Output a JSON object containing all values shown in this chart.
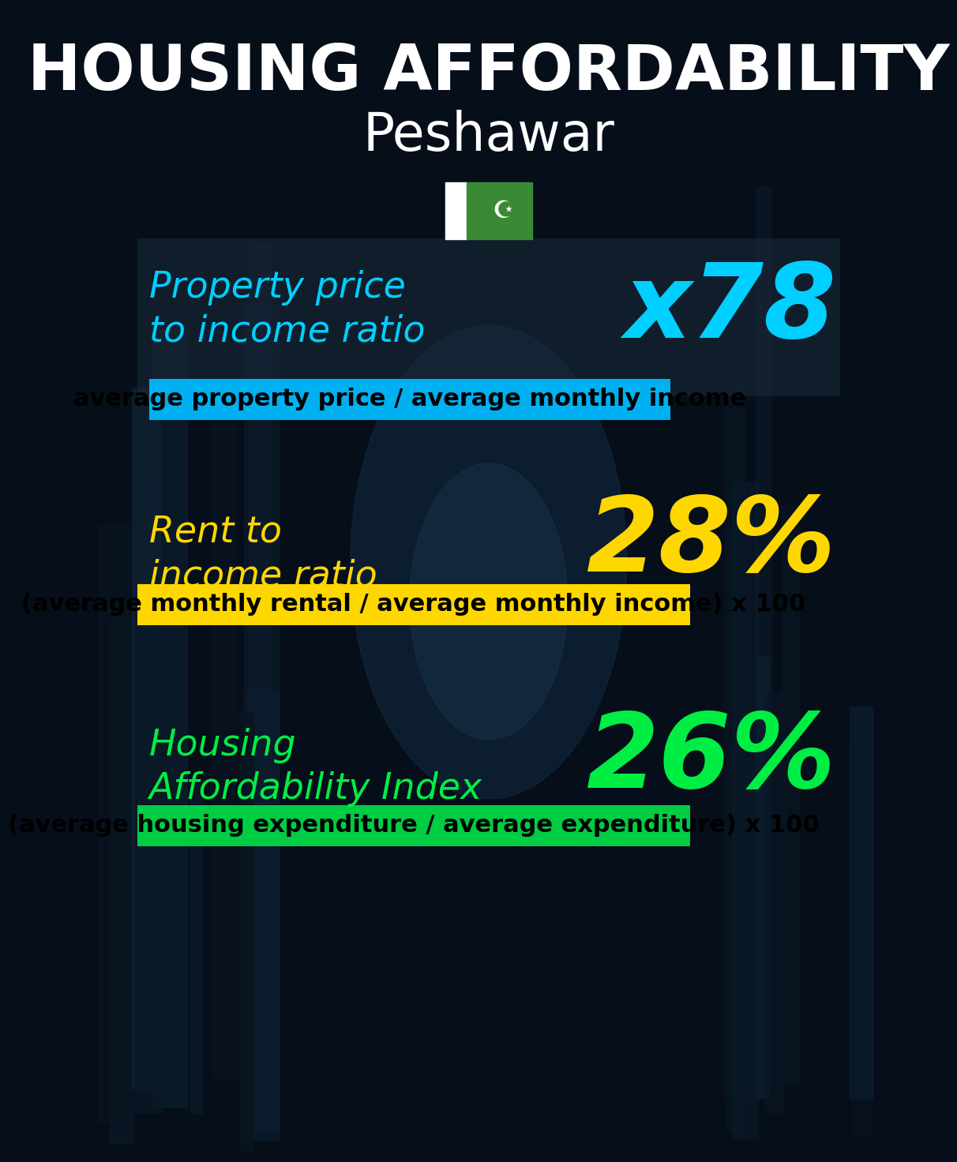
{
  "title_line1": "HOUSING AFFORDABILITY",
  "title_line2": "Peshawar",
  "title_color": "#ffffff",
  "title_fontsize": 58,
  "subtitle_fontsize": 48,
  "section1_label": "Property price\nto income ratio",
  "section1_value": "x78",
  "section1_label_color": "#00cfff",
  "section1_value_color": "#00cfff",
  "section1_label_fontsize": 33,
  "section1_value_fontsize": 95,
  "section1_banner_text": "average property price / average monthly income",
  "section1_banner_color": "#00b0f0",
  "section1_banner_text_color": "#000000",
  "section1_banner_fontsize": 22,
  "section2_label": "Rent to\nincome ratio",
  "section2_value": "28%",
  "section2_label_color": "#ffd700",
  "section2_value_color": "#ffd700",
  "section2_label_fontsize": 33,
  "section2_value_fontsize": 95,
  "section2_banner_text": "(average monthly rental / average monthly income) x 100",
  "section2_banner_color": "#ffd700",
  "section2_banner_text_color": "#000000",
  "section2_banner_fontsize": 22,
  "section3_label": "Housing\nAffordability Index",
  "section3_value": "26%",
  "section3_label_color": "#00ee44",
  "section3_value_color": "#00ee44",
  "section3_label_fontsize": 33,
  "section3_value_fontsize": 95,
  "section3_banner_text": "(average housing expenditure / average expenditure) x 100",
  "section3_banner_color": "#00cc44",
  "section3_banner_text_color": "#000000",
  "section3_banner_fontsize": 22,
  "bg_color": "#060e1a",
  "panel_color": "#1a2a3a",
  "panel_alpha": 0.55
}
